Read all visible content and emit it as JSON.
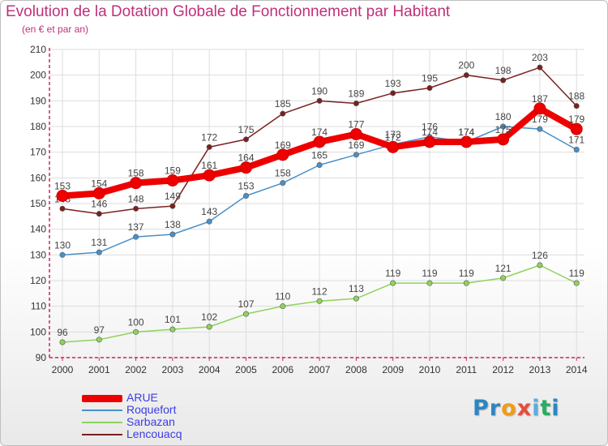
{
  "header": {
    "title": "Evolution de la Dotation Globale de Fonctionnement par Habitant",
    "subtitle": "(en € et par an)"
  },
  "colors": {
    "title": "#c0307a",
    "axis": "#d02060",
    "grid": "#dddddd",
    "legend_text": "#3c3ce6"
  },
  "brand": {
    "name": "Proxiti",
    "letter_colors": [
      "#2e86c1",
      "#2e86c1",
      "#f39c12",
      "#e74c3c",
      "#5dade2",
      "#27ae60",
      "#2e86c1"
    ]
  },
  "chart_data": {
    "type": "line",
    "title": "Evolution de la Dotation Globale de Fonctionnement par Habitant",
    "subtitle": "(en € et par an)",
    "xlabel": "",
    "ylabel": "",
    "x": [
      "2000",
      "2001",
      "2002",
      "2003",
      "2004",
      "2005",
      "2006",
      "2007",
      "2008",
      "2009",
      "2010",
      "2011",
      "2012",
      "2013",
      "2014"
    ],
    "ylim": [
      90,
      210
    ],
    "yticks": [
      90,
      100,
      110,
      120,
      130,
      140,
      150,
      160,
      170,
      180,
      190,
      200,
      210
    ],
    "grid": true,
    "legend_position": "bottom-left",
    "series": [
      {
        "name": "Sarbazan",
        "color": "#8fd35a",
        "values": [
          96,
          97,
          100,
          101,
          102,
          107,
          110,
          112,
          113,
          119,
          119,
          119,
          121,
          126,
          119
        ]
      },
      {
        "name": "Roquefort",
        "color": "#4a90c8",
        "values": [
          130,
          131,
          137,
          138,
          143,
          153,
          158,
          165,
          169,
          173,
          176,
          174,
          180,
          179,
          171
        ]
      },
      {
        "name": "Lencouacq",
        "color": "#7a2020",
        "values": [
          148,
          146,
          148,
          149,
          172,
          175,
          185,
          190,
          189,
          193,
          195,
          200,
          198,
          203,
          188
        ]
      },
      {
        "name": "ARUE",
        "color": "#ee0000",
        "values": [
          153,
          154,
          158,
          159,
          161,
          164,
          169,
          174,
          177,
          172,
          174,
          174,
          175,
          187,
          179
        ]
      }
    ],
    "legend_order": [
      "ARUE",
      "Roquefort",
      "Sarbazan",
      "Lencouacq"
    ]
  }
}
